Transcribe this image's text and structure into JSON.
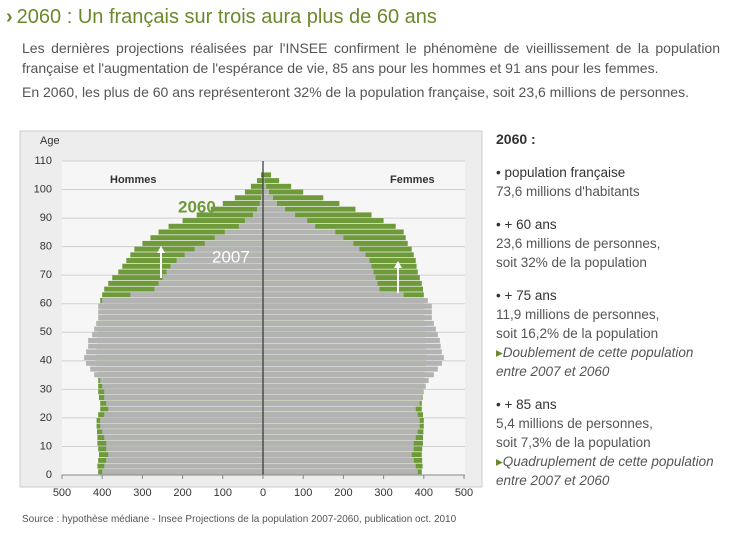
{
  "header": {
    "title": "2060 : Un français sur trois aura plus de 60 ans",
    "intro": [
      "Les dernières projections réalisées par l'INSEE confirment le phénomène de vieillissement de la population française et l'augmentation de l'espérance de vie, 85 ans pour les hommes et 91 ans pour les femmes.",
      "En 2060, les plus de 60 ans représenteront 32% de la population française, soit 23,6 millions de personnes."
    ]
  },
  "side": {
    "heading": "2060 :",
    "items": [
      {
        "title": "• population française",
        "lines": [
          "73,6 millions d'habitants"
        ]
      },
      {
        "title": "• + 60 ans",
        "lines": [
          "23,6 millions de personnes,",
          "soit 32% de la population"
        ]
      },
      {
        "title": "• + 75 ans",
        "lines": [
          "11,9 millions de personnes,",
          "soit 16,2% de la population"
        ],
        "note": "Doublement de cette population entre 2007 et 2060"
      },
      {
        "title": "• + 85 ans",
        "lines": [
          "5,4 millions de personnes,",
          "soit 7,3% de la population"
        ],
        "note": "Quadruplement de cette population entre 2007 et 2060"
      }
    ]
  },
  "source": "Source : hypothèse médiane - Insee Projections de la population 2007-2060, publication oct. 2010",
  "chart_data": {
    "type": "pyramid",
    "y_label": "Age",
    "left_label": "Hommes",
    "right_label": "Femmes",
    "ylim": [
      0,
      110
    ],
    "yticks": [
      0,
      10,
      20,
      30,
      40,
      50,
      60,
      70,
      80,
      90,
      100,
      110
    ],
    "xlim": [
      0,
      500
    ],
    "xticks": [
      0,
      100,
      200,
      300,
      400,
      500
    ],
    "grid": true,
    "ages": [
      0,
      2,
      4,
      6,
      8,
      10,
      12,
      14,
      16,
      18,
      20,
      22,
      24,
      26,
      28,
      30,
      32,
      34,
      36,
      38,
      40,
      42,
      44,
      46,
      48,
      50,
      52,
      54,
      56,
      58,
      60,
      62,
      64,
      66,
      68,
      70,
      72,
      74,
      76,
      78,
      80,
      82,
      84,
      86,
      88,
      90,
      92,
      94,
      96,
      98,
      100,
      102,
      104
    ],
    "series": [
      {
        "name": "2060",
        "color": "#6e9a3a",
        "men": [
          410,
          412,
          410,
          408,
          410,
          412,
          412,
          413,
          414,
          414,
          410,
          405,
          405,
          408,
          410,
          410,
          410,
          412,
          414,
          415,
          415,
          414,
          414,
          412,
          412,
          410,
          410,
          408,
          406,
          405,
          405,
          400,
          395,
          385,
          375,
          360,
          350,
          340,
          330,
          320,
          300,
          280,
          260,
          235,
          200,
          165,
          130,
          100,
          70,
          45,
          30,
          15,
          5
        ],
        "women": [
          395,
          397,
          396,
          395,
          396,
          398,
          398,
          399,
          400,
          400,
          398,
          395,
          395,
          397,
          398,
          400,
          400,
          402,
          404,
          405,
          405,
          405,
          404,
          404,
          403,
          402,
          402,
          401,
          400,
          400,
          400,
          400,
          398,
          395,
          390,
          385,
          382,
          380,
          375,
          370,
          360,
          355,
          350,
          330,
          300,
          270,
          230,
          190,
          150,
          100,
          70,
          40,
          20
        ]
      },
      {
        "name": "2007",
        "color": "#b3b3b3",
        "men": [
          400,
          395,
          390,
          385,
          390,
          390,
          395,
          400,
          405,
          405,
          395,
          385,
          390,
          395,
          395,
          400,
          405,
          420,
          430,
          440,
          445,
          440,
          435,
          435,
          425,
          420,
          415,
          410,
          410,
          410,
          400,
          330,
          270,
          260,
          250,
          240,
          230,
          215,
          195,
          170,
          145,
          120,
          95,
          60,
          45,
          25,
          15,
          8,
          5,
          3,
          1,
          0.5,
          0.2
        ],
        "women": [
          385,
          380,
          375,
          370,
          375,
          375,
          380,
          385,
          390,
          390,
          385,
          380,
          390,
          395,
          400,
          405,
          412,
          425,
          435,
          445,
          450,
          445,
          442,
          440,
          435,
          430,
          425,
          420,
          420,
          420,
          410,
          350,
          290,
          285,
          280,
          275,
          270,
          265,
          255,
          240,
          225,
          200,
          180,
          130,
          110,
          80,
          55,
          35,
          25,
          15,
          8,
          4,
          2
        ]
      }
    ]
  }
}
